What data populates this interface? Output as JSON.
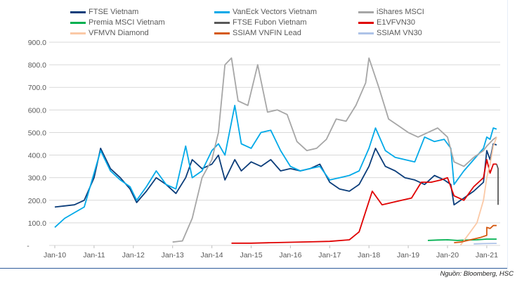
{
  "chart_data": {
    "type": "line",
    "title": "",
    "xlabel": "",
    "ylabel": "",
    "ylim": [
      0,
      900
    ],
    "y_ticks": [
      "-",
      "100.0",
      "200.0",
      "300.0",
      "400.0",
      "500.0",
      "600.0",
      "700.0",
      "800.0",
      "900.0"
    ],
    "x_ticks": [
      "Jan-10",
      "Jan-11",
      "Jan-12",
      "Jan-13",
      "Jan-14",
      "Jan-15",
      "Jan-16",
      "Jan-17",
      "Jan-18",
      "Jan-19",
      "Jan-20",
      "Jan-21"
    ],
    "grid": "horizontal",
    "legend_position": "top",
    "series": [
      {
        "name": "FTSE Vietnam",
        "color": "#0b3d7a",
        "x": [
          "2010-01",
          "2010-04",
          "2010-07",
          "2010-10",
          "2011-01",
          "2011-03",
          "2011-06",
          "2011-09",
          "2011-12",
          "2012-02",
          "2012-05",
          "2012-08",
          "2012-11",
          "2013-02",
          "2013-05",
          "2013-07",
          "2013-10",
          "2014-01",
          "2014-03",
          "2014-05",
          "2014-08",
          "2014-10",
          "2015-01",
          "2015-04",
          "2015-07",
          "2015-10",
          "2016-01",
          "2016-04",
          "2016-07",
          "2016-10",
          "2017-01",
          "2017-04",
          "2017-07",
          "2017-10",
          "2018-01",
          "2018-03",
          "2018-06",
          "2018-09",
          "2018-12",
          "2019-03",
          "2019-06",
          "2019-09",
          "2019-12",
          "2020-02",
          "2020-03",
          "2020-06",
          "2020-09",
          "2020-12",
          "2021-01",
          "2021-02",
          "2021-03",
          "2021-04"
        ],
        "values": [
          170,
          175,
          180,
          200,
          300,
          430,
          340,
          300,
          250,
          190,
          240,
          300,
          270,
          230,
          300,
          380,
          340,
          360,
          400,
          290,
          380,
          330,
          370,
          350,
          380,
          330,
          340,
          330,
          340,
          360,
          280,
          250,
          240,
          270,
          350,
          430,
          350,
          330,
          300,
          290,
          270,
          310,
          290,
          270,
          180,
          210,
          240,
          280,
          420,
          380,
          450,
          445
        ]
      },
      {
        "name": "VanEck Vectors Vietnam",
        "color": "#00a9e8",
        "x": [
          "2010-01",
          "2010-04",
          "2010-07",
          "2010-10",
          "2011-01",
          "2011-03",
          "2011-06",
          "2011-09",
          "2011-12",
          "2012-02",
          "2012-05",
          "2012-08",
          "2012-11",
          "2013-02",
          "2013-05",
          "2013-07",
          "2013-10",
          "2014-01",
          "2014-03",
          "2014-05",
          "2014-08",
          "2014-10",
          "2015-01",
          "2015-04",
          "2015-07",
          "2015-10",
          "2016-01",
          "2016-04",
          "2016-07",
          "2016-10",
          "2017-01",
          "2017-04",
          "2017-07",
          "2017-10",
          "2018-01",
          "2018-03",
          "2018-06",
          "2018-09",
          "2018-12",
          "2019-03",
          "2019-06",
          "2019-09",
          "2019-12",
          "2020-02",
          "2020-03",
          "2020-06",
          "2020-09",
          "2020-12",
          "2021-01",
          "2021-02",
          "2021-03",
          "2021-04"
        ],
        "values": [
          80,
          120,
          145,
          170,
          320,
          420,
          330,
          290,
          260,
          200,
          260,
          330,
          270,
          250,
          440,
          300,
          330,
          420,
          450,
          400,
          620,
          450,
          430,
          500,
          510,
          420,
          350,
          330,
          340,
          350,
          290,
          300,
          310,
          330,
          430,
          520,
          420,
          390,
          380,
          370,
          480,
          460,
          470,
          430,
          270,
          330,
          380,
          430,
          480,
          470,
          520,
          515
        ]
      },
      {
        "name": "iShares MSCI",
        "color": "#a6a6a6",
        "x": [
          "2013-01",
          "2013-04",
          "2013-07",
          "2013-10",
          "2014-01",
          "2014-03",
          "2014-05",
          "2014-07",
          "2014-09",
          "2014-12",
          "2015-03",
          "2015-06",
          "2015-09",
          "2015-12",
          "2016-03",
          "2016-06",
          "2016-09",
          "2016-12",
          "2017-03",
          "2017-06",
          "2017-09",
          "2017-12",
          "2018-01",
          "2018-04",
          "2018-07",
          "2018-10",
          "2019-01",
          "2019-04",
          "2019-07",
          "2019-10",
          "2020-01",
          "2020-03",
          "2020-06",
          "2020-09",
          "2020-12",
          "2021-01",
          "2021-03",
          "2021-04"
        ],
        "values": [
          15,
          20,
          120,
          300,
          380,
          500,
          800,
          830,
          640,
          620,
          800,
          590,
          600,
          580,
          460,
          420,
          430,
          470,
          560,
          550,
          620,
          720,
          830,
          700,
          560,
          530,
          500,
          480,
          500,
          520,
          480,
          370,
          350,
          390,
          420,
          440,
          470,
          480
        ]
      },
      {
        "name": "Premia MSCI Vietnam",
        "color": "#00b050",
        "x": [
          "2019-07",
          "2019-10",
          "2020-01",
          "2020-04",
          "2020-07",
          "2020-10",
          "2021-01",
          "2021-04"
        ],
        "values": [
          22,
          24,
          25,
          22,
          24,
          25,
          28,
          28
        ]
      },
      {
        "name": "FTSE Fubon Vietnam",
        "color": "#595959",
        "x": [
          "2021-03",
          "2021-03",
          "2021-04"
        ],
        "values": [
          180,
          340,
          360
        ]
      },
      {
        "name": "E1VFVN30",
        "color": "#e00000",
        "x": [
          "2014-07",
          "2015-01",
          "2015-07",
          "2016-01",
          "2016-07",
          "2017-01",
          "2017-07",
          "2017-10",
          "2017-12",
          "2018-02",
          "2018-05",
          "2018-08",
          "2018-11",
          "2019-02",
          "2019-05",
          "2019-08",
          "2019-11",
          "2020-01",
          "2020-03",
          "2020-06",
          "2020-09",
          "2020-12",
          "2021-01",
          "2021-02",
          "2021-03",
          "2021-04"
        ],
        "values": [
          10,
          10,
          12,
          14,
          16,
          18,
          25,
          60,
          150,
          240,
          180,
          190,
          200,
          210,
          280,
          280,
          290,
          300,
          220,
          200,
          260,
          300,
          380,
          320,
          360,
          360
        ]
      },
      {
        "name": "VFMVN Diamond",
        "color": "#fbc9a6",
        "x": [
          "2020-05",
          "2020-08",
          "2020-10",
          "2020-12",
          "2021-01",
          "2021-02",
          "2021-03",
          "2021-04"
        ],
        "values": [
          2,
          60,
          100,
          200,
          300,
          360,
          440,
          480
        ]
      },
      {
        "name": "SSIAM VNFIN Lead",
        "color": "#d55a12",
        "x": [
          "2020-03",
          "2020-05",
          "2020-08",
          "2020-11",
          "2021-01",
          "2021-01",
          "2021-02",
          "2021-03",
          "2021-04"
        ],
        "values": [
          12,
          15,
          25,
          35,
          45,
          80,
          75,
          88,
          88
        ]
      },
      {
        "name": "SSIAM VN30",
        "color": "#aec3e8",
        "x": [
          "2020-09",
          "2020-12",
          "2021-03",
          "2021-04"
        ],
        "values": [
          7,
          8,
          9,
          9
        ]
      }
    ]
  },
  "source": "Nguồn: Bloomberg, HSC"
}
